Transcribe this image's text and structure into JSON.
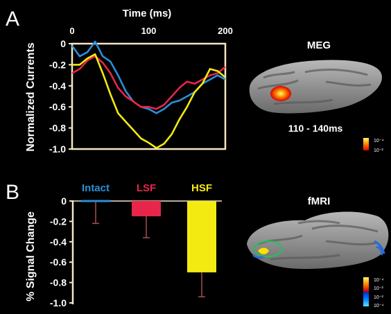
{
  "panels": {
    "a": "A",
    "b": "B"
  },
  "meg": {
    "title": "MEG",
    "window": "110 - 140ms",
    "colorbar_top": "10⁻⁴",
    "colorbar_bottom": "10⁻²"
  },
  "fmri": {
    "title": "fMRI",
    "colorbar_labels": [
      "10⁻⁴",
      "10⁻²",
      "10⁻²",
      "10⁻⁴"
    ]
  },
  "colors": {
    "intact": "#2b8fd8",
    "lsf": "#e8254a",
    "hsf": "#f3ea12",
    "axis": "#f6e6c6"
  },
  "chart_data": [
    {
      "type": "line",
      "title": "",
      "xlabel": "Time (ms)",
      "ylabel": "Normalized Currents",
      "xlim": [
        0,
        200
      ],
      "ylim": [
        -1.0,
        0
      ],
      "xticks": [
        "0",
        "100",
        "200"
      ],
      "yticks": [
        "0",
        "-0.2",
        "-0.4",
        "-0.6",
        "-0.8",
        "-1.0"
      ],
      "x": [
        0,
        10,
        20,
        30,
        40,
        50,
        60,
        70,
        80,
        90,
        100,
        110,
        120,
        130,
        140,
        150,
        160,
        170,
        180,
        190,
        200
      ],
      "series": [
        {
          "name": "Intact",
          "color": "#2b8fd8",
          "values": [
            -0.02,
            -0.12,
            -0.08,
            0.02,
            -0.12,
            -0.17,
            -0.3,
            -0.45,
            -0.55,
            -0.6,
            -0.62,
            -0.66,
            -0.62,
            -0.56,
            -0.54,
            -0.5,
            -0.46,
            -0.38,
            -0.34,
            -0.3,
            -0.34
          ]
        },
        {
          "name": "LSF",
          "color": "#e8254a",
          "values": [
            -0.28,
            -0.24,
            -0.16,
            -0.12,
            -0.18,
            -0.28,
            -0.42,
            -0.5,
            -0.55,
            -0.6,
            -0.6,
            -0.62,
            -0.58,
            -0.5,
            -0.42,
            -0.36,
            -0.38,
            -0.34,
            -0.3,
            -0.28,
            -0.22
          ]
        },
        {
          "name": "HSF",
          "color": "#f3ea12",
          "values": [
            -0.2,
            -0.2,
            -0.14,
            -0.1,
            -0.28,
            -0.48,
            -0.66,
            -0.74,
            -0.82,
            -0.9,
            -0.94,
            -0.99,
            -0.95,
            -0.86,
            -0.72,
            -0.6,
            -0.46,
            -0.38,
            -0.24,
            -0.26,
            -0.32
          ]
        }
      ]
    },
    {
      "type": "bar",
      "title": "",
      "xlabel": "",
      "ylabel": "% Signal Change",
      "ylim": [
        -1.0,
        0
      ],
      "yticks": [
        "0",
        "-0.2",
        "-0.4",
        "-0.6",
        "-0.8",
        "-1.0"
      ],
      "categories": [
        "Intact",
        "LSF",
        "HSF"
      ],
      "values": [
        0.0,
        -0.15,
        -0.7
      ],
      "errors": [
        0.22,
        0.21,
        0.24
      ],
      "colors": [
        "#2b8fd8",
        "#e8254a",
        "#f3ea12"
      ]
    }
  ]
}
